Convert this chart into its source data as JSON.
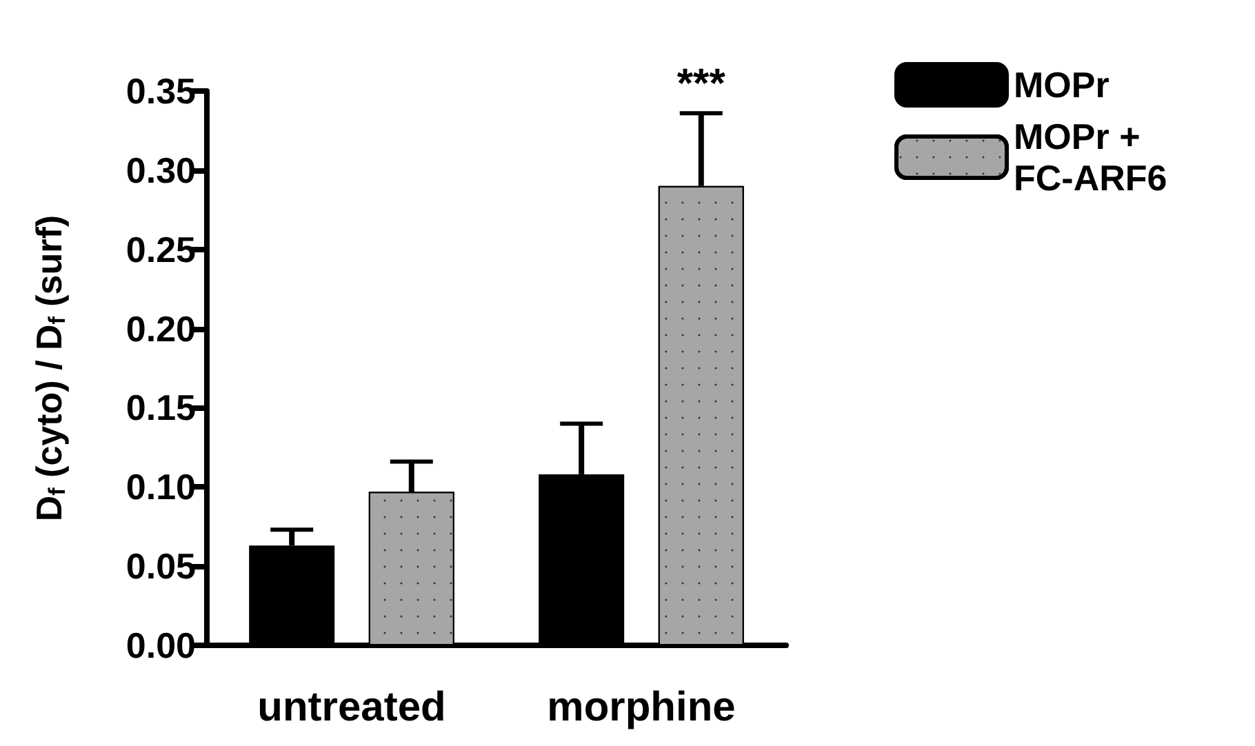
{
  "chart_data": {
    "type": "bar",
    "ylabel": "D$_{f}$ (cyto) / D$_{f}$ (surf)",
    "categories": [
      "untreated",
      "morphine"
    ],
    "series": [
      {
        "name": "MOPr",
        "color": "#000000",
        "values": [
          0.063,
          0.108
        ],
        "errors": [
          [
            0.063,
            0.073
          ],
          [
            0.108,
            0.14
          ]
        ]
      },
      {
        "name": "MOPr + FC-ARF6",
        "color": "#a6a6a6",
        "values": [
          0.097,
          0.29
        ],
        "errors": [
          [
            0.097,
            0.116
          ],
          [
            0.29,
            0.336
          ]
        ]
      }
    ],
    "ylim": [
      0,
      0.35
    ],
    "yticks": [
      {
        "value": 0,
        "label": "0.00"
      },
      0.05,
      {
        "value": 0.1,
        "label": "0.10"
      },
      0.15,
      {
        "value": 0.2,
        "label": "0.20"
      },
      0.25,
      {
        "value": 0.3,
        "label": "0.30"
      },
      0.35
    ],
    "grid": false,
    "legend": "top right",
    "annotations": [
      "***"
    ]
  }
}
